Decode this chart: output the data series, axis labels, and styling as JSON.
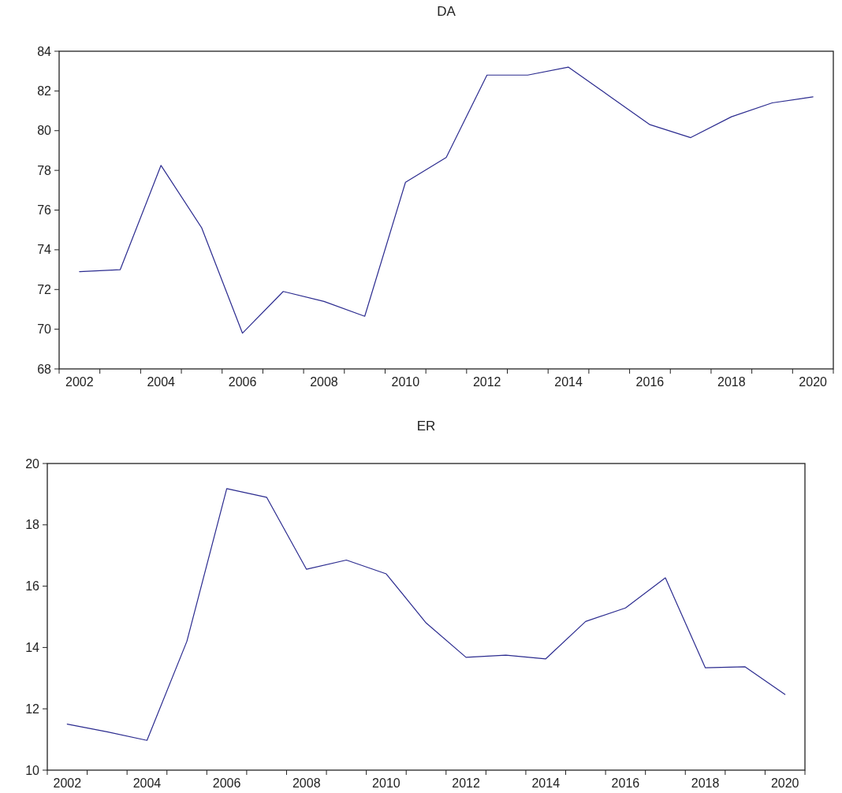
{
  "chart_data": [
    {
      "type": "line",
      "title": "DA",
      "x": [
        2002,
        2003,
        2004,
        2005,
        2006,
        2007,
        2008,
        2009,
        2010,
        2011,
        2012,
        2013,
        2014,
        2015,
        2016,
        2017,
        2018,
        2019,
        2020
      ],
      "series": [
        {
          "color": "#2b2b8f",
          "values": [
            72.9,
            73.0,
            78.25,
            75.1,
            69.8,
            71.9,
            71.4,
            70.65,
            77.4,
            78.65,
            82.8,
            82.8,
            83.2,
            81.75,
            80.3,
            79.65,
            80.7,
            81.4,
            81.7
          ]
        }
      ],
      "xlim": [
        2001.5,
        2020.5
      ],
      "ylim": [
        68,
        84
      ],
      "yticks": [
        68,
        70,
        72,
        74,
        76,
        78,
        80,
        82,
        84
      ],
      "xticks": [
        {
          "value": 2001.5,
          "label": null
        },
        {
          "value": 2002,
          "label": "2002"
        },
        {
          "value": 2002.5,
          "label": null
        },
        {
          "value": 2003.5,
          "label": null
        },
        {
          "value": 2004,
          "label": "2004"
        },
        {
          "value": 2004.5,
          "label": null
        },
        {
          "value": 2005.5,
          "label": null
        },
        {
          "value": 2006,
          "label": "2006"
        },
        {
          "value": 2006.5,
          "label": null
        },
        {
          "value": 2007.5,
          "label": null
        },
        {
          "value": 2008,
          "label": "2008"
        },
        {
          "value": 2008.5,
          "label": null
        },
        {
          "value": 2009.5,
          "label": null
        },
        {
          "value": 2010,
          "label": "2010"
        },
        {
          "value": 2010.5,
          "label": null
        },
        {
          "value": 2011.5,
          "label": null
        },
        {
          "value": 2012,
          "label": "2012"
        },
        {
          "value": 2012.5,
          "label": null
        },
        {
          "value": 2013.5,
          "label": null
        },
        {
          "value": 2014,
          "label": "2014"
        },
        {
          "value": 2014.5,
          "label": null
        },
        {
          "value": 2015.5,
          "label": null
        },
        {
          "value": 2016,
          "label": "2016"
        },
        {
          "value": 2016.5,
          "label": null
        },
        {
          "value": 2017.5,
          "label": null
        },
        {
          "value": 2018,
          "label": "2018"
        },
        {
          "value": 2018.5,
          "label": null
        },
        {
          "value": 2019.5,
          "label": null
        },
        {
          "value": 2020,
          "label": "2020"
        },
        {
          "value": 2020.5,
          "label": null
        }
      ]
    },
    {
      "type": "line",
      "title": "ER",
      "x": [
        2002,
        2003,
        2004,
        2005,
        2006,
        2007,
        2008,
        2009,
        2010,
        2011,
        2012,
        2013,
        2014,
        2015,
        2016,
        2017,
        2018,
        2019,
        2020
      ],
      "series": [
        {
          "color": "#2b2b8f",
          "values": [
            11.5,
            11.25,
            10.97,
            14.2,
            19.18,
            18.9,
            16.55,
            16.85,
            16.4,
            14.8,
            13.68,
            13.75,
            13.63,
            14.85,
            15.29,
            16.27,
            13.34,
            13.37,
            12.47
          ]
        }
      ],
      "xlim": [
        2001.5,
        2020.5
      ],
      "ylim": [
        10,
        20
      ],
      "yticks": [
        10,
        12,
        14,
        16,
        18,
        20
      ],
      "xticks": [
        {
          "value": 2001.5,
          "label": null
        },
        {
          "value": 2002,
          "label": "2002"
        },
        {
          "value": 2002.5,
          "label": null
        },
        {
          "value": 2003.5,
          "label": null
        },
        {
          "value": 2004,
          "label": "2004"
        },
        {
          "value": 2004.5,
          "label": null
        },
        {
          "value": 2005.5,
          "label": null
        },
        {
          "value": 2006,
          "label": "2006"
        },
        {
          "value": 2006.5,
          "label": null
        },
        {
          "value": 2007.5,
          "label": null
        },
        {
          "value": 2008,
          "label": "2008"
        },
        {
          "value": 2008.5,
          "label": null
        },
        {
          "value": 2009.5,
          "label": null
        },
        {
          "value": 2010,
          "label": "2010"
        },
        {
          "value": 2010.5,
          "label": null
        },
        {
          "value": 2011.5,
          "label": null
        },
        {
          "value": 2012,
          "label": "2012"
        },
        {
          "value": 2012.5,
          "label": null
        },
        {
          "value": 2013.5,
          "label": null
        },
        {
          "value": 2014,
          "label": "2014"
        },
        {
          "value": 2014.5,
          "label": null
        },
        {
          "value": 2015.5,
          "label": null
        },
        {
          "value": 2016,
          "label": "2016"
        },
        {
          "value": 2016.5,
          "label": null
        },
        {
          "value": 2017.5,
          "label": null
        },
        {
          "value": 2018,
          "label": "2018"
        },
        {
          "value": 2018.5,
          "label": null
        },
        {
          "value": 2019.5,
          "label": null
        },
        {
          "value": 2020,
          "label": "2020"
        },
        {
          "value": 2020.5,
          "label": null
        }
      ]
    }
  ]
}
